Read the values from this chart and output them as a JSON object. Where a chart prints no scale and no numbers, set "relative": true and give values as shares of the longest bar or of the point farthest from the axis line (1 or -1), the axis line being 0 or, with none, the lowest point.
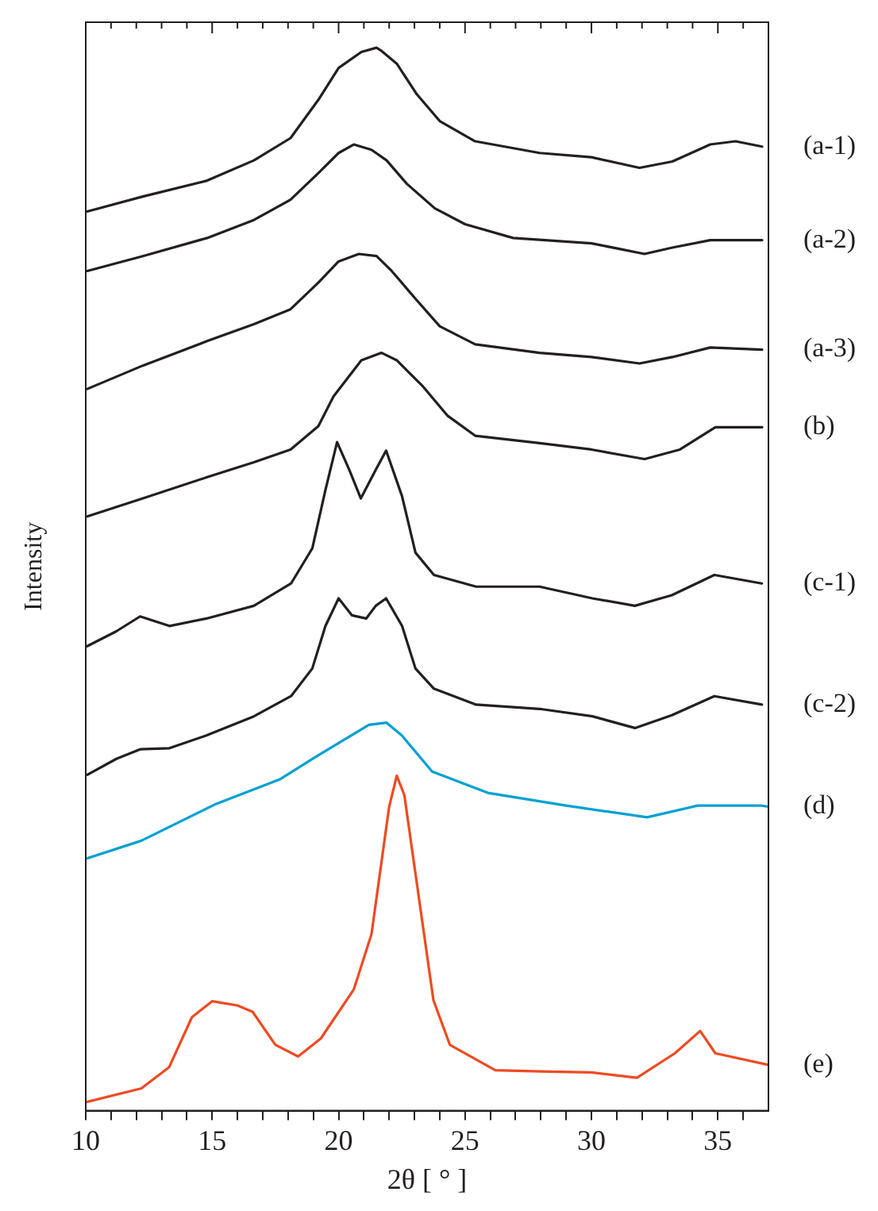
{
  "chart_data": {
    "type": "line",
    "relative": true,
    "xlabel": "2θ [ ° ]",
    "ylabel": "Intensity",
    "xlim": [
      10,
      37
    ],
    "xticks": [
      10,
      {
        "value": 11,
        "label": null
      },
      {
        "value": 12,
        "label": null
      },
      {
        "value": 13,
        "label": null
      },
      {
        "value": 14,
        "label": null
      },
      15,
      {
        "value": 16,
        "label": null
      },
      {
        "value": 17,
        "label": null
      },
      {
        "value": 18,
        "label": null
      },
      {
        "value": 19,
        "label": null
      },
      20,
      {
        "value": 21,
        "label": null
      },
      {
        "value": 22,
        "label": null
      },
      {
        "value": 23,
        "label": null
      },
      {
        "value": 24,
        "label": null
      },
      25,
      {
        "value": 26,
        "label": null
      },
      {
        "value": 27,
        "label": null
      },
      {
        "value": 28,
        "label": null
      },
      {
        "value": 29,
        "label": null
      },
      30,
      {
        "value": 31,
        "label": null
      },
      {
        "value": 32,
        "label": null
      },
      {
        "value": 33,
        "label": null
      },
      {
        "value": 34,
        "label": null
      },
      35,
      {
        "value": 36,
        "label": null
      }
    ],
    "grid": false,
    "legend": false,
    "series": [
      {
        "name": "(a-1)",
        "color": "#231f20",
        "x": [
          10.06,
          12.26,
          14.8,
          16.65,
          18.1,
          19.2,
          20.0,
          20.9,
          21.5,
          21.7,
          22.3,
          23.1,
          24.0,
          25.4,
          27.95,
          30.0,
          31.9,
          33.2,
          34.7,
          35.7,
          36.75
        ],
        "values": [
          0.846,
          0.86,
          0.875,
          0.894,
          0.915,
          0.951,
          0.981,
          0.996,
          1.0,
          0.997,
          0.985,
          0.956,
          0.931,
          0.912,
          0.901,
          0.897,
          0.887,
          0.893,
          0.909,
          0.912,
          0.907
        ]
      },
      {
        "name": "(a-2)",
        "color": "#231f20",
        "x": [
          10.06,
          12.26,
          14.8,
          16.65,
          18.1,
          19.2,
          20.0,
          20.6,
          21.3,
          21.9,
          22.7,
          23.8,
          25.0,
          26.9,
          30.0,
          32.1,
          33.2,
          34.7,
          36.75
        ],
        "values": [
          0.79,
          0.804,
          0.821,
          0.838,
          0.857,
          0.882,
          0.901,
          0.909,
          0.904,
          0.894,
          0.872,
          0.849,
          0.834,
          0.821,
          0.816,
          0.806,
          0.812,
          0.819,
          0.819
        ]
      },
      {
        "name": "(a-3)",
        "color": "#231f20",
        "x": [
          10.06,
          12.26,
          14.8,
          16.65,
          18.1,
          19.2,
          20.0,
          20.8,
          21.5,
          22.1,
          23.0,
          24.0,
          25.4,
          27.95,
          30.0,
          31.9,
          33.2,
          34.7,
          36.75
        ],
        "values": [
          0.679,
          0.701,
          0.724,
          0.74,
          0.754,
          0.779,
          0.799,
          0.806,
          0.804,
          0.79,
          0.765,
          0.738,
          0.721,
          0.713,
          0.709,
          0.703,
          0.709,
          0.718,
          0.716
        ]
      },
      {
        "name": "(b)",
        "color": "#231f20",
        "x": [
          10.06,
          12.26,
          14.8,
          16.65,
          18.1,
          19.2,
          19.8,
          20.9,
          21.7,
          22.3,
          23.35,
          24.3,
          25.4,
          27.95,
          30.0,
          32.1,
          33.5,
          34.9,
          36.75
        ],
        "values": [
          0.559,
          0.576,
          0.596,
          0.61,
          0.622,
          0.644,
          0.672,
          0.706,
          0.713,
          0.706,
          0.681,
          0.654,
          0.635,
          0.628,
          0.622,
          0.613,
          0.622,
          0.643,
          0.643
        ]
      },
      {
        "name": "(c-1)",
        "color": "#231f20",
        "x": [
          10.06,
          11.21,
          12.15,
          13.31,
          14.77,
          16.65,
          18.12,
          18.96,
          19.48,
          19.94,
          20.42,
          20.88,
          21.47,
          21.88,
          22.51,
          23.04,
          23.77,
          25.44,
          27.95,
          30.04,
          31.72,
          33.18,
          34.86,
          36.74
        ],
        "values": [
          0.437,
          0.451,
          0.465,
          0.456,
          0.463,
          0.475,
          0.496,
          0.529,
          0.584,
          0.629,
          0.603,
          0.576,
          0.603,
          0.621,
          0.578,
          0.525,
          0.504,
          0.493,
          0.493,
          0.482,
          0.475,
          0.485,
          0.504,
          0.496
        ]
      },
      {
        "name": "(c-2)",
        "color": "#231f20",
        "x": [
          10.06,
          11.21,
          12.15,
          13.31,
          14.77,
          16.65,
          18.12,
          18.96,
          19.48,
          20.0,
          20.53,
          21.09,
          21.47,
          21.88,
          22.51,
          23.04,
          23.77,
          25.44,
          27.95,
          30.04,
          31.72,
          33.18,
          34.86,
          36.74
        ],
        "values": [
          0.316,
          0.331,
          0.34,
          0.341,
          0.353,
          0.371,
          0.39,
          0.416,
          0.456,
          0.482,
          0.466,
          0.463,
          0.475,
          0.482,
          0.456,
          0.416,
          0.397,
          0.382,
          0.378,
          0.371,
          0.36,
          0.372,
          0.39,
          0.382
        ]
      },
      {
        "name": "(d)",
        "color": "#00a0d2",
        "x": [
          10.0,
          12.2,
          15.1,
          17.7,
          19.1,
          21.2,
          21.9,
          22.5,
          23.7,
          25.9,
          29.0,
          32.2,
          34.2,
          36.7,
          37.0
        ],
        "values": [
          0.237,
          0.254,
          0.288,
          0.312,
          0.333,
          0.363,
          0.365,
          0.353,
          0.319,
          0.299,
          0.287,
          0.276,
          0.287,
          0.287,
          0.286
        ]
      },
      {
        "name": "(e)",
        "color": "#ee4a22",
        "x": [
          10.0,
          12.2,
          13.3,
          14.2,
          15.0,
          16.0,
          16.6,
          17.5,
          18.4,
          19.3,
          20.6,
          21.3,
          22.0,
          22.3,
          22.6,
          23.1,
          23.75,
          24.4,
          26.2,
          28.0,
          30.0,
          31.8,
          33.3,
          34.3,
          34.9,
          37.0
        ],
        "values": [
          0.008,
          0.021,
          0.041,
          0.088,
          0.103,
          0.099,
          0.093,
          0.062,
          0.051,
          0.068,
          0.114,
          0.166,
          0.286,
          0.315,
          0.297,
          0.213,
          0.104,
          0.062,
          0.038,
          0.037,
          0.036,
          0.031,
          0.054,
          0.075,
          0.054,
          0.043
        ]
      }
    ]
  }
}
